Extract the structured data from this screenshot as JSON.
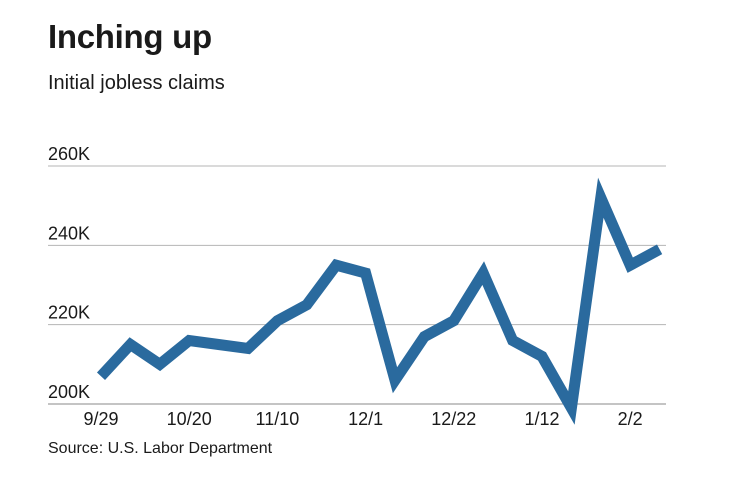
{
  "chart_data": {
    "type": "line",
    "title": "Inching up",
    "subtitle": "Initial jobless claims",
    "source": "Source: U.S. Labor Department",
    "x_tick_labels": [
      "9/29",
      "10/20",
      "11/10",
      "12/1",
      "12/22",
      "1/12",
      "2/2"
    ],
    "y_tick_labels": [
      "200K",
      "220K",
      "240K",
      "260K"
    ],
    "y_ticks": [
      200000,
      220000,
      240000,
      260000
    ],
    "ylim": [
      200000,
      260000
    ],
    "grid": true,
    "series": [
      {
        "color": "#2a6a9e",
        "values": [
          207000,
          215000,
          210000,
          216000,
          215000,
          214000,
          221000,
          225000,
          235000,
          233000,
          206000,
          217000,
          221000,
          233000,
          216000,
          212000,
          199000,
          252000,
          235000,
          239000
        ]
      }
    ]
  }
}
